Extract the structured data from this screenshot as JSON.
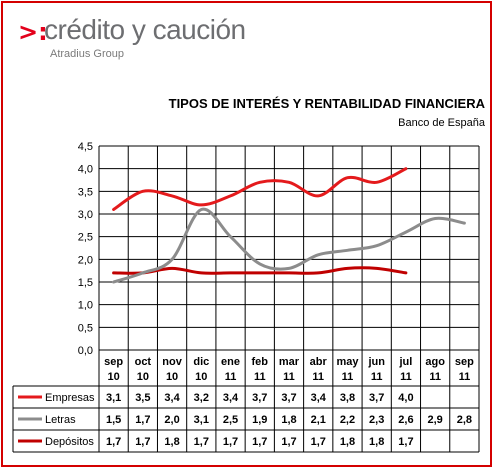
{
  "logo": {
    "mark": ">:",
    "name": "crédito y caución",
    "sub": "Atradius Group"
  },
  "colors": {
    "border": "#d40000",
    "empresas": "#e41a1c",
    "letras": "#8c8c8c",
    "depositos": "#c00000",
    "grid": "#000000"
  },
  "chart_data": {
    "type": "line",
    "title": "TIPOS DE INTERÉS Y RENTABILIDAD FINANCIERA",
    "subtitle": "Banco de España",
    "categories": [
      [
        "sep",
        "10"
      ],
      [
        "oct",
        "10"
      ],
      [
        "nov",
        "10"
      ],
      [
        "dic",
        "10"
      ],
      [
        "ene",
        "11"
      ],
      [
        "feb",
        "11"
      ],
      [
        "mar",
        "11"
      ],
      [
        "abr",
        "11"
      ],
      [
        "may",
        "11"
      ],
      [
        "jun",
        "11"
      ],
      [
        "jul",
        "11"
      ],
      [
        "ago",
        "11"
      ],
      [
        "sep",
        "11"
      ]
    ],
    "yticks": [
      "0,0",
      "0,5",
      "1,0",
      "1,5",
      "2,0",
      "2,5",
      "3,0",
      "3,5",
      "4,0",
      "4,5"
    ],
    "ylim": [
      0,
      4.5
    ],
    "grid": true,
    "legend": "data-table",
    "series": [
      {
        "name": "Empresas",
        "color": "#e41a1c",
        "values": [
          3.1,
          3.5,
          3.4,
          3.2,
          3.4,
          3.7,
          3.7,
          3.4,
          3.8,
          3.7,
          4.0,
          null,
          null
        ],
        "labels": [
          "3,1",
          "3,5",
          "3,4",
          "3,2",
          "3,4",
          "3,7",
          "3,7",
          "3,4",
          "3,8",
          "3,7",
          "4,0",
          "",
          ""
        ]
      },
      {
        "name": "Letras",
        "color": "#8c8c8c",
        "values": [
          1.5,
          1.7,
          2.0,
          3.1,
          2.5,
          1.9,
          1.8,
          2.1,
          2.2,
          2.3,
          2.6,
          2.9,
          2.8
        ],
        "labels": [
          "1,5",
          "1,7",
          "2,0",
          "3,1",
          "2,5",
          "1,9",
          "1,8",
          "2,1",
          "2,2",
          "2,3",
          "2,6",
          "2,9",
          "2,8"
        ]
      },
      {
        "name": "Depósitos",
        "color": "#c00000",
        "values": [
          1.7,
          1.7,
          1.8,
          1.7,
          1.7,
          1.7,
          1.7,
          1.7,
          1.8,
          1.8,
          1.7,
          null,
          null
        ],
        "labels": [
          "1,7",
          "1,7",
          "1,8",
          "1,7",
          "1,7",
          "1,7",
          "1,7",
          "1,7",
          "1,8",
          "1,8",
          "1,7",
          "",
          ""
        ]
      }
    ]
  }
}
